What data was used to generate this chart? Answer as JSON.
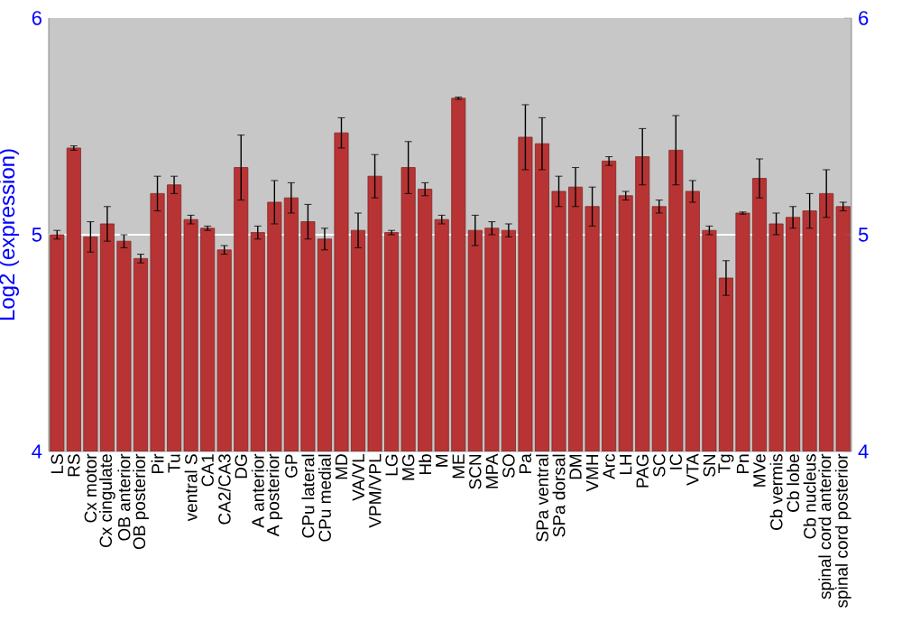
{
  "chart_data": {
    "type": "bar",
    "ylabel": "Log2 (expression)",
    "categories": [
      "LS",
      "RS",
      "Cx motor",
      "Cx cingulate",
      "OB anterior",
      "OB posterior",
      "Pir",
      "Tu",
      "ventral S",
      "CA1",
      "CA2/CA3",
      "DG",
      "A anterior",
      "A posterior",
      "GP",
      "CPu lateral",
      "CPu medial",
      "MD",
      "VA/VL",
      "VPM/VPL",
      "LG",
      "MG",
      "Hb",
      "M",
      "ME",
      "SCN",
      "MPA",
      "SO",
      "Pa",
      "SPa ventral",
      "SPa dorsal",
      "DM",
      "VMH",
      "Arc",
      "LH",
      "PAG",
      "SC",
      "IC",
      "VTA",
      "SN",
      "Tg",
      "Pn",
      "MVe",
      "Cb vermis",
      "Cb lobe",
      "Cb nucleus",
      "spinal cord anterior",
      "spinal cord posterior"
    ],
    "values": [
      5.0,
      5.4,
      4.99,
      5.05,
      4.97,
      4.89,
      5.19,
      5.23,
      5.07,
      5.03,
      4.93,
      5.31,
      5.01,
      5.15,
      5.17,
      5.06,
      4.98,
      5.47,
      5.02,
      5.27,
      5.01,
      5.31,
      5.21,
      5.07,
      5.63,
      5.02,
      5.03,
      5.02,
      5.45,
      5.42,
      5.2,
      5.22,
      5.13,
      5.34,
      5.18,
      5.36,
      5.13,
      5.39,
      5.2,
      5.02,
      4.8,
      5.1,
      5.26,
      5.05,
      5.08,
      5.11,
      5.19,
      5.13
    ],
    "errors": [
      0.02,
      0.01,
      0.07,
      0.08,
      0.03,
      0.02,
      0.08,
      0.04,
      0.02,
      0.01,
      0.02,
      0.15,
      0.03,
      0.1,
      0.07,
      0.08,
      0.05,
      0.07,
      0.08,
      0.1,
      0.01,
      0.12,
      0.03,
      0.02,
      0.005,
      0.07,
      0.03,
      0.03,
      0.15,
      0.12,
      0.07,
      0.09,
      0.09,
      0.02,
      0.02,
      0.13,
      0.03,
      0.16,
      0.05,
      0.02,
      0.08,
      0.005,
      0.09,
      0.05,
      0.05,
      0.08,
      0.11,
      0.02
    ],
    "color": "#b83434",
    "ylim": [
      4,
      6
    ],
    "yticks": [
      4,
      5,
      6
    ],
    "y2lim": [
      4,
      6
    ],
    "y2ticks": [
      4,
      5,
      6
    ],
    "grid": "y"
  }
}
